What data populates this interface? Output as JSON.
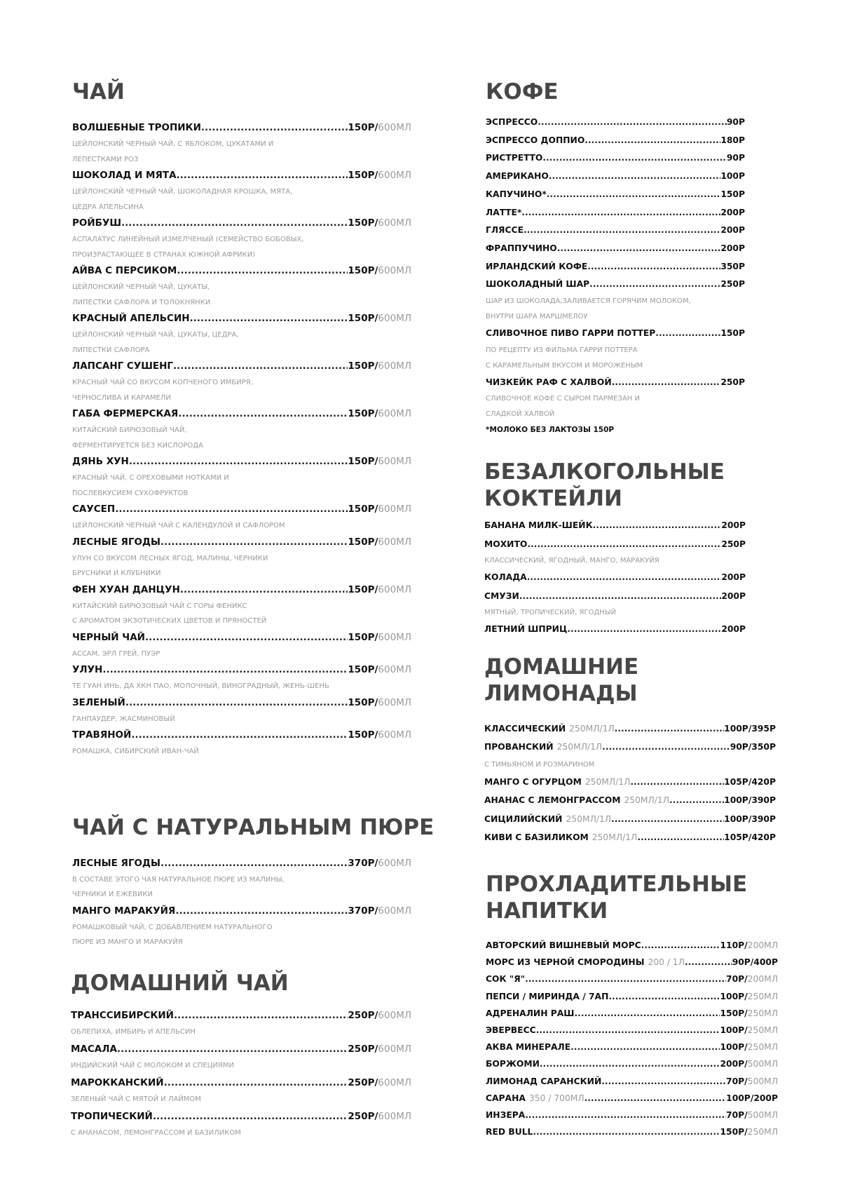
{
  "sections": [
    {
      "id": "sec-tea",
      "kind": "big",
      "title": [
        "ЧАЙ"
      ],
      "items": [
        {
          "name": "ВОЛШЕБНЫЕ ТРОПИКИ",
          "price": "150Р/",
          "volume": "600МЛ",
          "desc": [
            "ЦЕЙЛОНСКИЙ ЧЕРНЫЙ ЧАЙ, С ЯБЛОКОМ, ЦУКАТАМИ И",
            "ЛЕПЕСТКАМИ РОЗ"
          ]
        },
        {
          "name": "ШОКОЛАД И МЯТА",
          "price": "150Р/",
          "volume": "600МЛ",
          "desc": [
            "ЦЕЙЛОНСКИЙ ЧЕРНЫЙ ЧАЙ, ШОКОЛАДНАЯ КРОШКА, МЯТА,",
            "ЦЕДРА АПЕЛЬСИНА"
          ]
        },
        {
          "name": "РОЙБУШ",
          "price": "150Р/",
          "volume": "600МЛ",
          "desc": [
            "АСПАЛАТУС ЛИНЕЙНЫЙ ИЗМЕЛЧЕНЫЙ (СЕМЕЙСТВО БОБОВЫХ,",
            "ПРОИЗРАСТАЮЩЕЕ В СТРАНАХ ЮЖНОЙ АФРИКИ)"
          ]
        },
        {
          "name": "АЙВА С ПЕРСИКОМ",
          "price": "150Р/",
          "volume": "600МЛ",
          "desc": [
            "ЦЕЙЛОНСКИЙ ЧЕРНЫЙ ЧАЙ, ЦУКАТЫ,",
            "ЛИПЕСТКИ САФЛОРА И ТОЛОКНЯНКИ"
          ]
        },
        {
          "name": "КРАСНЫЙ АПЕЛЬСИН",
          "price": "150Р/",
          "volume": "600МЛ",
          "desc": [
            "ЦЕЙЛОНСКИЙ ЧЕРНЫЙ ЧАЙ, ЦУКАТЫ, ЦЕДРА,",
            "ЛИПЕСТКИ САФЛОРА"
          ]
        },
        {
          "name": "ЛАПСАНГ СУШЕНГ",
          "price": "150Р/",
          "volume": "600МЛ",
          "desc": [
            "КРАСНЫЙ ЧАЙ СО ВКУСОМ КОПЧЕНОГО ИМБИРЯ,",
            "ЧЕРНОСЛИВА И КАРАМЕЛИ"
          ]
        },
        {
          "name": "ГАБА ФЕРМЕРСКАЯ",
          "price": "150Р/",
          "volume": "600МЛ",
          "desc": [
            "КИТАЙСКИЙ БИРЮЗОВЫЙ ЧАЙ,",
            "ФЕРМЕНТИРУЕТСЯ БЕЗ КИСЛОРОДА"
          ]
        },
        {
          "name": "ДЯНЬ ХУН",
          "price": "150Р/",
          "volume": "600МЛ",
          "desc": [
            "КРАСНЫЙ ЧАЙ, С ОРЕХОВЫМИ НОТКАМИ И",
            "ПОСЛЕВКУСИЕМ СУХОФРУКТОВ"
          ]
        },
        {
          "name": "САУСЕП",
          "price": "150Р/",
          "volume": "600МЛ",
          "desc": [
            "ЦЕЙЛОНСКИЙ ЧЕРНЫЙ ЧАЙ С КАЛЕНДУЛОЙ И САФЛОРОМ"
          ]
        },
        {
          "name": "ЛЕСНЫЕ ЯГОДЫ",
          "price": "150Р/",
          "volume": "600МЛ",
          "desc": [
            "УЛУН СО ВКУСОМ ЛЕСНЫХ ЯГОД, МАЛИНЫ, ЧЕРНИКИ",
            "БРУСНИКИ И КЛУБНИКИ"
          ]
        },
        {
          "name": "ФЕН ХУАН ДАНЦУН",
          "price": "150Р/",
          "volume": "600МЛ",
          "desc": [
            "КИТАЙСКИЙ БИРЮЗОВЫЙ ЧАЙ С ГОРЫ ФЕНИКС",
            "С АРОМАТОМ ЭКЗОТИЧЕСКИХ ЦВЕТОВ И ПРЯНОСТЕЙ"
          ]
        },
        {
          "name": "ЧЕРНЫЙ ЧАЙ",
          "price": "150Р/",
          "volume": "600МЛ",
          "desc": [
            "АССАМ, ЭРЛ ГРЕЙ, ПУЭР"
          ]
        },
        {
          "name": "УЛУН",
          "price": "150Р/",
          "volume": "600МЛ",
          "desc": [
            "ТЕ ГУАН ИНЬ, ДА ХКН ПАО, МОЛОЧНЫЙ, ВИНОГРАДНЫЙ, ЖЕНЬ-ШЕНЬ"
          ]
        },
        {
          "name": "ЗЕЛЕНЫЙ",
          "price": "150Р/",
          "volume": "600МЛ",
          "desc": [
            "ГАНПАУДЕР, ЖАСМИНОВЫЙ"
          ]
        },
        {
          "name": "ТРАВЯНОЙ",
          "price": "150Р/",
          "volume": "600МЛ",
          "desc": [
            "РОМАШКА, СИБИРСКИЙ ИВАН-ЧАЙ"
          ]
        }
      ]
    },
    {
      "id": "sec-puree",
      "kind": "big",
      "title": [
        "ЧАЙ С НАТУРАЛЬНЫМ ПЮРЕ"
      ],
      "items": [
        {
          "name": "ЛЕСНЫЕ ЯГОДЫ",
          "price": "370Р/",
          "volume": "600МЛ",
          "desc": [
            "В СОСТАВЕ ЭТОГО ЧАЯ НАТУРАЛЬНОЕ ПЮРЕ ИЗ МАЛИНЫ,",
            "ЧЕРНИКИ И ЕЖЕВИКИ"
          ]
        },
        {
          "name": "МАНГО МАРАКУЙЯ",
          "price": "370Р/",
          "volume": "600МЛ",
          "desc": [
            "РОМАШКОВЫЙ ЧАЙ, С ДОБАВЛЕНИЕМ НАТУРАЛЬНОГО",
            "ПЮРЕ ИЗ МАНГО И МАРАКУЙЯ"
          ]
        }
      ]
    },
    {
      "id": "sec-home",
      "kind": "big",
      "title": [
        "ДОМАШНИЙ ЧАЙ"
      ],
      "items": [
        {
          "name": "ТРАНССИБИРСКИЙ",
          "price": "250Р/",
          "volume": "600МЛ",
          "desc": [
            "ОБЛЕПИХА, ИМБИРЬ И АПЕЛЬСИН"
          ]
        },
        {
          "name": "МАСАЛА",
          "price": "250Р/",
          "volume": "600МЛ",
          "desc": [
            "ИНДИЙСКИЙ ЧАЙ С МОЛОКОМ И СПЕЦИЯМИ"
          ]
        },
        {
          "name": "МАРОККАНСКИЙ",
          "price": "250Р/",
          "volume": "600МЛ",
          "desc": [
            "ЗЕЛЕНЫЙ ЧАЙ С МЯТОЙ И ЛАЙМОМ"
          ]
        },
        {
          "name": "ТРОПИЧЕСКИЙ",
          "price": "250Р/",
          "volume": "600МЛ",
          "desc": [
            "С АНАНАСОМ, ЛЕМОНГРАССОМ И БАЗИЛИКОМ"
          ]
        }
      ]
    },
    {
      "id": "sec-coffee",
      "kind": "small",
      "title": [
        "КОФЕ"
      ],
      "items": [
        {
          "name": "ЭСПРЕССО",
          "price": "90Р"
        },
        {
          "name": "ЭСПРЕССО ДОППИО",
          "price": "180Р"
        },
        {
          "name": "РИСТРЕТТО",
          "price": "90Р"
        },
        {
          "name": "АМЕРИКАНО",
          "price": "100Р"
        },
        {
          "name": "КАПУЧИНО*",
          "price": "150Р"
        },
        {
          "name": "ЛАТТЕ*",
          "price": "200Р"
        },
        {
          "name": "ГЛЯССЕ",
          "price": "200Р"
        },
        {
          "name": "ФРАППУЧИНО",
          "price": "200Р"
        },
        {
          "name": "ИРЛАНДСКИЙ КОФЕ",
          "price": "350Р"
        },
        {
          "name": "ШОКОЛАДНЫЙ ШАР",
          "price": "250Р",
          "desc": [
            "ШАР ИЗ ШОКОЛАДА,ЗАЛИВАЕТСЯ ГОРЯЧИМ МОЛОКОМ,",
            "ВНУТРИ ШАРА МАРШМЕЛОУ"
          ]
        },
        {
          "name": "СЛИВОЧНОЕ ПИВО ГАРРИ ПОТТЕР",
          "price": "150Р",
          "desc": [
            "ПО РЕЦЕПТУ ИЗ ФИЛЬМА ГАРРИ ПОТТЕРА",
            "С КАРАМЕЛЬНЫМ ВКУСОМ И МОРОЖЕНЫМ"
          ]
        },
        {
          "name": "ЧИЗКЕЙК РАФ С ХАЛВОЙ",
          "price": "250Р",
          "desc": [
            "СЛИВОЧНОЕ КОФЕ С СЫРОМ ПАРМЕЗАН И",
            "СЛАДКОЙ ХАЛВОЙ"
          ]
        }
      ],
      "note": "*МОЛОКО БЕЗ ЛАКТОЗЫ 150Р"
    },
    {
      "id": "sec-cocktails",
      "kind": "small",
      "title": [
        "БЕЗАЛКОГОЛЬНЫЕ",
        "КОКТЕЙЛИ"
      ],
      "items": [
        {
          "name": "БАНАНА МИЛК-ШЕЙК",
          "price": "200Р"
        },
        {
          "name": "МОХИТО",
          "price": "250Р",
          "desc": [
            "КЛАССИЧЕСКИЙ, ЯГОДНЫЙ, МАНГО, МАРАКУЙЯ"
          ]
        },
        {
          "name": "КОЛАДА",
          "price": "200Р"
        },
        {
          "name": "СМУЗИ",
          "price": "200Р",
          "desc": [
            "МЯТНЫЙ, ТРОПИЧЕСКИЙ, ЯГОДНЫЙ"
          ]
        },
        {
          "name": "ЛЕТНИЙ ШПРИЦ",
          "price": "200Р"
        }
      ]
    },
    {
      "id": "sec-lemonade",
      "kind": "small",
      "title": [
        "ДОМАШНИЕ",
        "ЛИМОНАДЫ"
      ],
      "items": [
        {
          "name": "КЛАССИЧЕСКИЙ",
          "size": "250МЛ/1Л",
          "price": "100Р/395Р"
        },
        {
          "name": "ПРОВАНСКИЙ",
          "size": "250МЛ/1Л",
          "price": "90Р/350Р",
          "desc": [
            "С ТИМЬЯНОМ И РОЗМАРИНОМ"
          ]
        },
        {
          "name": "МАНГО С ОГУРЦОМ",
          "size": "250МЛ/1Л",
          "price": "105Р/420Р"
        },
        {
          "name": "АНАНАС С ЛЕМОНГРАССОМ",
          "size": "250МЛ/1Л",
          "price": "100Р/390Р"
        },
        {
          "name": "СИЦИЛИЙСКИЙ",
          "size": "250МЛ/1Л",
          "price": "100Р/390Р"
        },
        {
          "name": "КИВИ С БАЗИЛИКОМ",
          "size": "250МЛ/1Л",
          "price": "105Р/420Р"
        }
      ]
    },
    {
      "id": "sec-cooling",
      "kind": "small",
      "title": [
        "ПРОХЛАДИТЕЛЬНЫЕ",
        "НАПИТКИ"
      ],
      "items": [
        {
          "name": "АВТОРСКИЙ ВИШНЕВЫЙ МОРС",
          "price": "110Р/",
          "volume": "200МЛ"
        },
        {
          "name": "МОРС ИЗ ЧЕРНОЙ СМОРОДИНЫ",
          "size": "200 / 1Л",
          "price": "90Р/400Р"
        },
        {
          "name": "СОК \"Я\"",
          "price": "70Р/",
          "volume": "200МЛ"
        },
        {
          "name": "ПЕПСИ / МИРИНДА / 7АП",
          "price": "100Р/",
          "volume": "250МЛ"
        },
        {
          "name": "АДРЕНАЛИН РАШ",
          "price": "150Р/",
          "volume": "250МЛ"
        },
        {
          "name": "ЭВЕРВЕСС",
          "price": "100Р/",
          "volume": "250МЛ"
        },
        {
          "name": "АКВА МИНЕРАЛЕ",
          "price": "100Р/",
          "volume": "250МЛ"
        },
        {
          "name": "БОРЖОМИ",
          "price": "200Р/",
          "volume": "500МЛ"
        },
        {
          "name": "ЛИМОНАД САРАНСКИЙ",
          "price": "70Р/",
          "volume": "500МЛ"
        },
        {
          "name": "САРАНА",
          "size": "350 / 700МЛ",
          "price": "100Р/200Р"
        },
        {
          "name": "ИНЗЕРА",
          "price": "70Р/",
          "volume": "500МЛ"
        },
        {
          "name": "RED BULL",
          "price": "150Р/",
          "volume": "250МЛ"
        }
      ]
    }
  ]
}
